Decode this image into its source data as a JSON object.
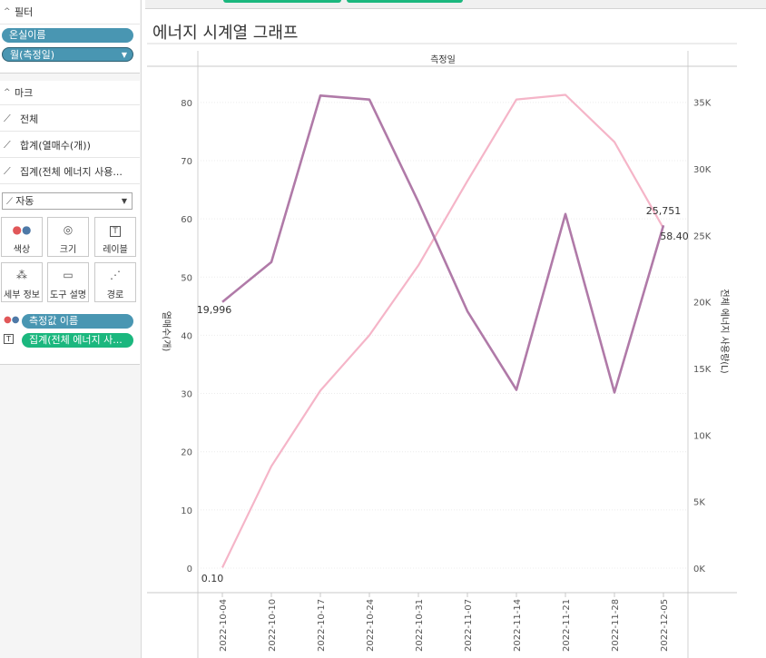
{
  "sidebar": {
    "filters": {
      "header": "필터",
      "pills": [
        "온실이름",
        "월(측정일)"
      ]
    },
    "marks": {
      "header": "마크",
      "rows": [
        "전체",
        "합계(열매수(개))",
        "집계(전체 에너지 사용..."
      ],
      "mark_type": "자동",
      "cards": [
        "색상",
        "크기",
        "레이블",
        "세부 정보",
        "도구 설명",
        "경로"
      ],
      "fields": [
        "측정값 이름",
        "집계(전체 에너지 사..."
      ]
    }
  },
  "view": {
    "title": "에너지 시계열 그래프"
  },
  "colors": {
    "series_left": "#b07aa8",
    "series_right": "#f5b5c8",
    "pill_blue": "#4996b2",
    "pill_green": "#1bb77e"
  },
  "chart_data": {
    "type": "line",
    "title": "에너지 시계열 그래프",
    "x_header": "측정일",
    "categories": [
      "2022-10-04",
      "2022-10-10",
      "2022-10-17",
      "2022-10-24",
      "2022-10-31",
      "2022-11-07",
      "2022-11-14",
      "2022-11-21",
      "2022-11-28",
      "2022-12-05"
    ],
    "series": [
      {
        "name": "합계(열매수(개))",
        "axis": "left",
        "values": [
          0.1,
          17.5,
          30.5,
          40.0,
          52.0,
          66.5,
          80.5,
          81.3,
          73.2,
          58.4
        ]
      },
      {
        "name": "집계(전체 에너지 사용량(L))",
        "axis": "right",
        "values": [
          19996,
          23000,
          35500,
          35200,
          27500,
          19300,
          13400,
          26600,
          13200,
          25751
        ]
      }
    ],
    "left_axis": {
      "label": "열매수(개)",
      "ticks": [
        "0",
        "10",
        "20",
        "30",
        "40",
        "50",
        "60",
        "70",
        "80"
      ],
      "ylim": [
        0,
        82
      ]
    },
    "right_axis": {
      "label": "전체 에너지 사용량(L)",
      "ticks": [
        "0K",
        "5K",
        "10K",
        "15K",
        "20K",
        "25K",
        "30K",
        "35K"
      ],
      "ylim": [
        0,
        35862
      ]
    },
    "data_labels": [
      "19,996",
      "25,751",
      "58.40",
      "0.10"
    ]
  }
}
